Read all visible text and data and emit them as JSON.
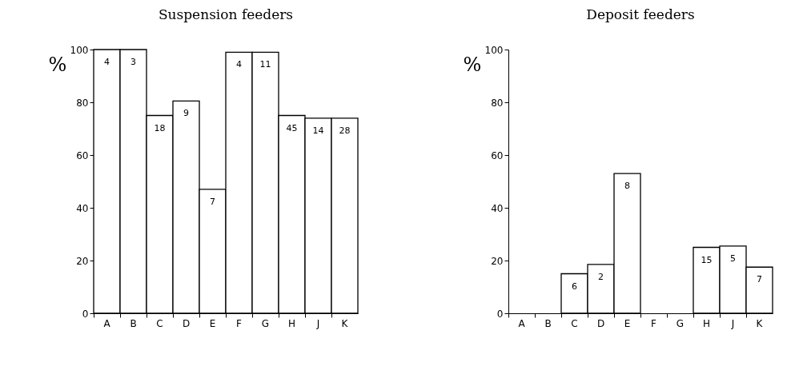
{
  "chart_data": [
    {
      "type": "bar",
      "title": "Suspension feeders",
      "ylabel": "%",
      "categories": [
        "A",
        "B",
        "C",
        "D",
        "E",
        "F",
        "G",
        "H",
        "J",
        "K"
      ],
      "values": [
        100,
        100,
        75,
        80.5,
        47,
        99,
        99,
        75,
        74,
        74
      ],
      "annotations": [
        {
          "text": "4",
          "x": "A",
          "y": 100
        },
        {
          "text": "3",
          "x": "B",
          "y": 100
        },
        {
          "text": "18",
          "x": "C",
          "y": 75
        },
        {
          "text": "9",
          "x": "D",
          "y": 80.5
        },
        {
          "text": "7",
          "x": "E",
          "y": 47
        },
        {
          "text": "4",
          "x": "F",
          "y": 99
        },
        {
          "text": "11",
          "x": "G",
          "y": 99
        },
        {
          "text": "45",
          "x": "H",
          "y": 75
        },
        {
          "text": "14",
          "x": "J",
          "y": 74
        },
        {
          "text": "28",
          "x": "K",
          "y": 74
        }
      ],
      "color": "#ffffff",
      "ylim": [
        0,
        100
      ],
      "yticks": [
        0,
        20,
        40,
        60,
        80,
        100
      ]
    },
    {
      "type": "bar",
      "title": "Deposit feeders",
      "ylabel": "%",
      "categories": [
        "A",
        "B",
        "C",
        "D",
        "E",
        "F",
        "G",
        "H",
        "J",
        "K"
      ],
      "values": [
        0,
        0,
        15,
        18.5,
        53,
        0,
        0,
        25,
        25.5,
        17.5
      ],
      "annotations": [
        {
          "text": "6",
          "x": "C",
          "y": 15
        },
        {
          "text": "2",
          "x": "D",
          "y": 18.5
        },
        {
          "text": "8",
          "x": "E",
          "y": 53
        },
        {
          "text": "15",
          "x": "H",
          "y": 25
        },
        {
          "text": "5",
          "x": "J",
          "y": 25.5
        },
        {
          "text": "7",
          "x": "K",
          "y": 17.5
        }
      ],
      "color": "#ffffff",
      "ylim": [
        0,
        100
      ],
      "yticks": [
        0,
        20,
        40,
        60,
        80,
        100
      ]
    }
  ]
}
